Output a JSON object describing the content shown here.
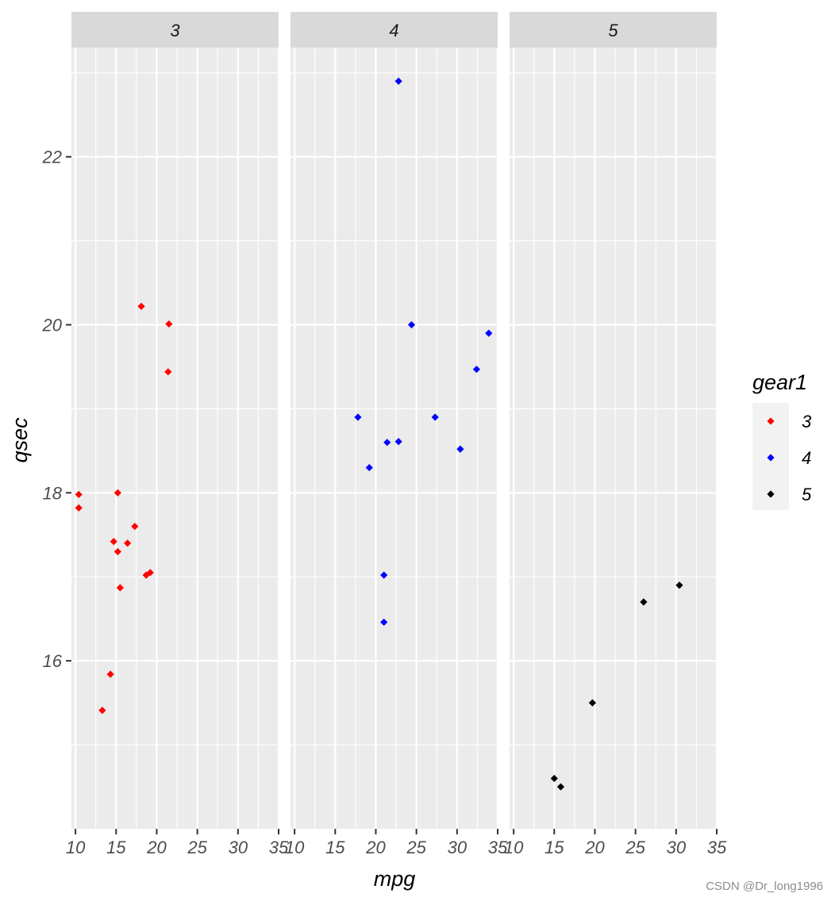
{
  "chart_data": {
    "type": "scatter",
    "facet_by": "gear",
    "facets": [
      "3",
      "4",
      "5"
    ],
    "xlabel": "mpg",
    "ylabel": "qsec",
    "xlim": [
      9.5,
      35
    ],
    "ylim": [
      14.0,
      23.3
    ],
    "x_ticks": [
      10,
      15,
      20,
      25,
      30,
      35
    ],
    "x_tick_labels": [
      "10",
      "15",
      "20",
      "25",
      "30",
      "35"
    ],
    "y_ticks": [
      16,
      18,
      20,
      22
    ],
    "y_tick_labels": [
      "16",
      "18",
      "20",
      "22"
    ],
    "legend": {
      "title": "gear1",
      "position": "right",
      "entries": [
        {
          "label": "3",
          "color": "#ff0000"
        },
        {
          "label": "4",
          "color": "#0000ff"
        },
        {
          "label": "5",
          "color": "#000000"
        }
      ]
    },
    "series": [
      {
        "name": "3",
        "facet": "3",
        "color": "#ff0000",
        "points": [
          [
            21.4,
            19.44
          ],
          [
            18.7,
            17.02
          ],
          [
            18.1,
            20.22
          ],
          [
            14.3,
            15.84
          ],
          [
            16.4,
            17.4
          ],
          [
            17.3,
            17.6
          ],
          [
            15.2,
            18.0
          ],
          [
            10.4,
            17.98
          ],
          [
            10.4,
            17.82
          ],
          [
            14.7,
            17.42
          ],
          [
            21.5,
            20.01
          ],
          [
            15.5,
            16.87
          ],
          [
            15.2,
            17.3
          ],
          [
            13.3,
            15.41
          ],
          [
            19.2,
            17.05
          ]
        ]
      },
      {
        "name": "4",
        "facet": "4",
        "color": "#0000ff",
        "points": [
          [
            21.0,
            16.46
          ],
          [
            21.0,
            17.02
          ],
          [
            22.8,
            18.61
          ],
          [
            24.4,
            20.0
          ],
          [
            22.8,
            22.9
          ],
          [
            19.2,
            18.3
          ],
          [
            17.8,
            18.9
          ],
          [
            32.4,
            19.47
          ],
          [
            30.4,
            18.52
          ],
          [
            33.9,
            19.9
          ],
          [
            27.3,
            18.9
          ],
          [
            21.4,
            18.6
          ]
        ]
      },
      {
        "name": "5",
        "facet": "5",
        "color": "#000000",
        "points": [
          [
            26.0,
            16.7
          ],
          [
            30.4,
            16.9
          ],
          [
            15.8,
            14.5
          ],
          [
            19.7,
            15.5
          ],
          [
            15.0,
            14.6
          ]
        ]
      }
    ]
  },
  "caption": "CSDN @Dr_long1996"
}
